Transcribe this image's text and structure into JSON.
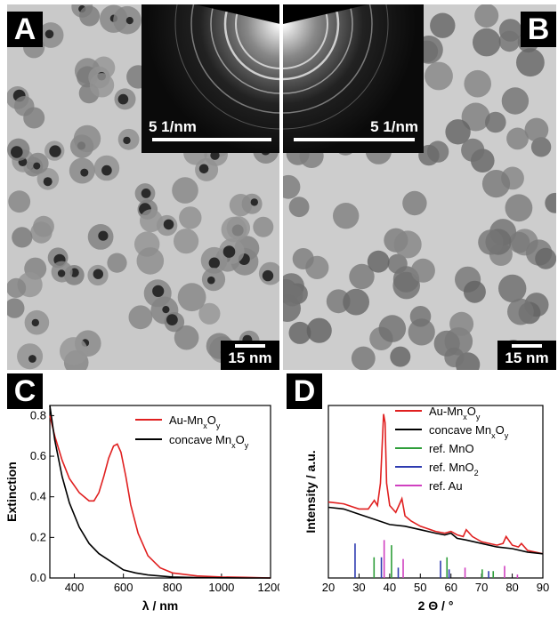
{
  "panels": {
    "A": {
      "letter": "A",
      "scale": "15 nm",
      "inset_scale": "5 1/nm"
    },
    "B": {
      "letter": "B",
      "scale": "15 nm",
      "inset_scale": "5 1/nm"
    },
    "C": {
      "letter": "C"
    },
    "D": {
      "letter": "D"
    }
  },
  "chart_data": [
    {
      "type": "line",
      "panel": "C",
      "xlabel": "λ / nm",
      "ylabel": "Extinction",
      "xlim": [
        300,
        1200
      ],
      "ylim": [
        0,
        0.85
      ],
      "xticks": [
        "400",
        "600",
        "800",
        "1000",
        "1200"
      ],
      "yticks": [
        "0.0",
        "0.2",
        "0.4",
        "0.6",
        "0.8"
      ],
      "legend_position": "top-right",
      "series": [
        {
          "name": "Au-MnxOy",
          "legend_main": "Au-Mn",
          "legend_sub1": "x",
          "legend_mid": "O",
          "legend_sub2": "y",
          "color": "#e02020",
          "x": [
            300,
            320,
            350,
            380,
            420,
            460,
            480,
            500,
            520,
            540,
            560,
            575,
            590,
            610,
            630,
            660,
            700,
            750,
            800,
            900,
            1000,
            1100,
            1200
          ],
          "y": [
            0.8,
            0.7,
            0.58,
            0.49,
            0.42,
            0.38,
            0.38,
            0.42,
            0.5,
            0.59,
            0.65,
            0.66,
            0.62,
            0.5,
            0.36,
            0.22,
            0.11,
            0.05,
            0.025,
            0.01,
            0.005,
            0.003,
            0.0
          ]
        },
        {
          "name": "concave MnxOy",
          "legend_main": "concave Mn",
          "legend_sub1": "x",
          "legend_mid": "O",
          "legend_sub2": "y",
          "color": "#000000",
          "x": [
            300,
            320,
            350,
            380,
            420,
            460,
            500,
            550,
            600,
            650,
            700,
            800,
            900,
            1000,
            1100,
            1200
          ],
          "y": [
            0.85,
            0.68,
            0.5,
            0.37,
            0.25,
            0.17,
            0.12,
            0.08,
            0.04,
            0.025,
            0.015,
            0.005,
            0.002,
            0.001,
            0.0,
            0.0
          ]
        }
      ]
    },
    {
      "type": "line",
      "panel": "D",
      "xlabel": "2 Θ / °",
      "ylabel": "Intensity / a.u.",
      "xlim": [
        20,
        90
      ],
      "xticks": [
        "20",
        "30",
        "40",
        "50",
        "60",
        "70",
        "80",
        "90"
      ],
      "legend_position": "top-right",
      "series": [
        {
          "name": "Au-MnxOy",
          "legend_main": "Au-Mn",
          "legend_sub1": "x",
          "legend_mid": "O",
          "legend_sub2": "y",
          "color": "#e02020",
          "x": [
            20,
            25,
            30,
            33,
            35,
            36,
            37,
            38,
            38.5,
            39,
            40,
            41,
            42,
            43,
            44,
            45,
            47,
            50,
            55,
            58,
            60,
            62,
            64,
            65,
            67,
            70,
            75,
            77,
            78,
            80,
            82,
            83,
            85,
            90
          ],
          "y": [
            0.44,
            0.43,
            0.4,
            0.4,
            0.45,
            0.42,
            0.55,
            0.95,
            0.9,
            0.55,
            0.42,
            0.4,
            0.38,
            0.42,
            0.46,
            0.36,
            0.33,
            0.3,
            0.27,
            0.26,
            0.27,
            0.25,
            0.24,
            0.28,
            0.24,
            0.21,
            0.19,
            0.2,
            0.24,
            0.19,
            0.18,
            0.2,
            0.16,
            0.14
          ]
        },
        {
          "name": "concave MnxOy",
          "legend_main": "concave Mn",
          "legend_sub1": "x",
          "legend_mid": "O",
          "legend_sub2": "y",
          "color": "#000000",
          "x": [
            20,
            25,
            30,
            35,
            40,
            45,
            50,
            55,
            58,
            60,
            62,
            65,
            70,
            75,
            80,
            85,
            90
          ],
          "y": [
            0.41,
            0.4,
            0.37,
            0.34,
            0.31,
            0.3,
            0.28,
            0.26,
            0.25,
            0.26,
            0.23,
            0.22,
            0.2,
            0.18,
            0.17,
            0.15,
            0.14
          ]
        },
        {
          "name": "ref. MnO",
          "color": "#2e9e3a",
          "sticks": [
            [
              34.9,
              0.12
            ],
            [
              40.6,
              0.19
            ],
            [
              58.7,
              0.12
            ],
            [
              70.2,
              0.05
            ],
            [
              73.8,
              0.04
            ]
          ]
        },
        {
          "name": "ref. MnO2",
          "legend_main": "ref. MnO",
          "legend_sub1": "2",
          "color": "#2e3bb0",
          "sticks": [
            [
              28.7,
              0.2
            ],
            [
              37.3,
              0.12
            ],
            [
              42.8,
              0.06
            ],
            [
              56.6,
              0.1
            ],
            [
              59.4,
              0.05
            ],
            [
              72.3,
              0.04
            ]
          ]
        },
        {
          "name": "ref. Au",
          "color": "#d040c0",
          "sticks": [
            [
              38.2,
              0.22
            ],
            [
              44.4,
              0.11
            ],
            [
              64.6,
              0.06
            ],
            [
              77.5,
              0.07
            ],
            [
              81.7,
              0.02
            ]
          ]
        }
      ]
    }
  ]
}
